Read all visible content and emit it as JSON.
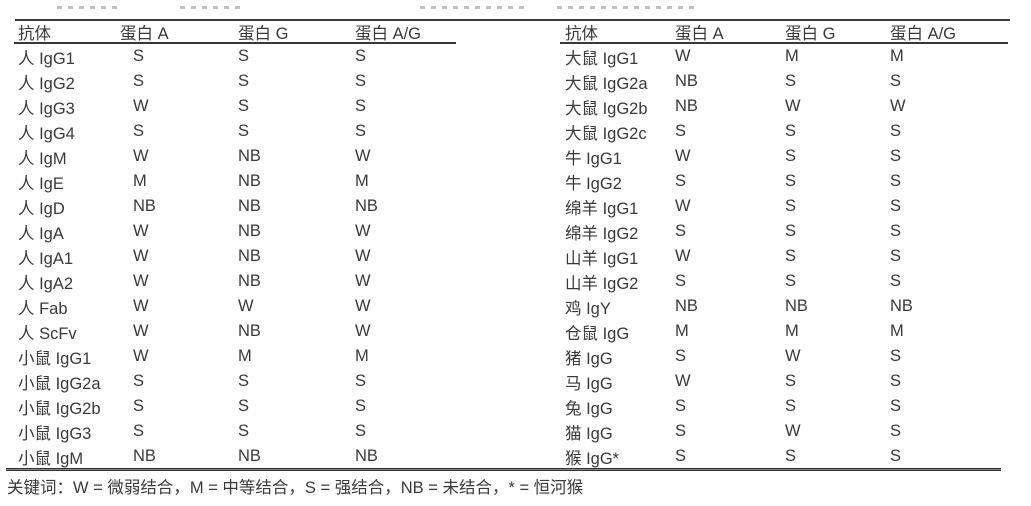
{
  "page": {
    "background_color": "#ffffff",
    "text_color": "#3a3a3a",
    "rule_color": "#383838"
  },
  "legend": {
    "text": "关键词：W = 微弱结合，M = 中等结合，S = 强结合，NB = 未结合，* = 恒河猴"
  },
  "tables": [
    {
      "id": "left",
      "headers": [
        "抗体",
        "蛋白 A",
        "蛋白 G",
        "蛋白 A/G"
      ],
      "rows": [
        [
          "人 IgG1",
          "S",
          "S",
          "S"
        ],
        [
          "人 IgG2",
          "S",
          "S",
          "S"
        ],
        [
          "人 IgG3",
          "W",
          "S",
          "S"
        ],
        [
          "人 IgG4",
          "S",
          "S",
          "S"
        ],
        [
          "人 IgM",
          "W",
          "NB",
          "W"
        ],
        [
          "人 IgE",
          "M",
          "NB",
          "M"
        ],
        [
          "人 IgD",
          "NB",
          "NB",
          "NB"
        ],
        [
          "人 IgA",
          "W",
          "NB",
          "W"
        ],
        [
          "人 IgA1",
          "W",
          "NB",
          "W"
        ],
        [
          "人 IgA2",
          "W",
          "NB",
          "W"
        ],
        [
          "人 Fab",
          "W",
          "W",
          "W"
        ],
        [
          "人 ScFv",
          "W",
          "NB",
          "W"
        ],
        [
          "小鼠 IgG1",
          "W",
          "M",
          "M"
        ],
        [
          "小鼠 IgG2a",
          "S",
          "S",
          "S"
        ],
        [
          "小鼠 IgG2b",
          "S",
          "S",
          "S"
        ],
        [
          "小鼠 IgG3",
          "S",
          "S",
          "S"
        ],
        [
          "小鼠 IgM",
          "NB",
          "NB",
          "NB"
        ]
      ]
    },
    {
      "id": "right",
      "headers": [
        "抗体",
        "蛋白 A",
        "蛋白 G",
        "蛋白 A/G"
      ],
      "rows": [
        [
          "大鼠 IgG1",
          "W",
          "M",
          "M"
        ],
        [
          "大鼠 IgG2a",
          "NB",
          "S",
          "S"
        ],
        [
          "大鼠 IgG2b",
          "NB",
          "W",
          "W"
        ],
        [
          "大鼠 IgG2c",
          "S",
          "S",
          "S"
        ],
        [
          "牛 IgG1",
          "W",
          "S",
          "S"
        ],
        [
          "牛 IgG2",
          "S",
          "S",
          "S"
        ],
        [
          "绵羊 IgG1",
          "W",
          "S",
          "S"
        ],
        [
          "绵羊 IgG2",
          "S",
          "S",
          "S"
        ],
        [
          "山羊 IgG1",
          "W",
          "S",
          "S"
        ],
        [
          "山羊 IgG2",
          "S",
          "S",
          "S"
        ],
        [
          "鸡 IgY",
          "NB",
          "NB",
          "NB"
        ],
        [
          "仓鼠 IgG",
          "M",
          "M",
          "M"
        ],
        [
          "猪 IgG",
          "S",
          "W",
          "S"
        ],
        [
          "马 IgG",
          "W",
          "S",
          "S"
        ],
        [
          "兔 IgG",
          "S",
          "S",
          "S"
        ],
        [
          "猫 IgG",
          "S",
          "W",
          "S"
        ],
        [
          "猴 IgG*",
          "S",
          "S",
          "S"
        ]
      ]
    }
  ]
}
